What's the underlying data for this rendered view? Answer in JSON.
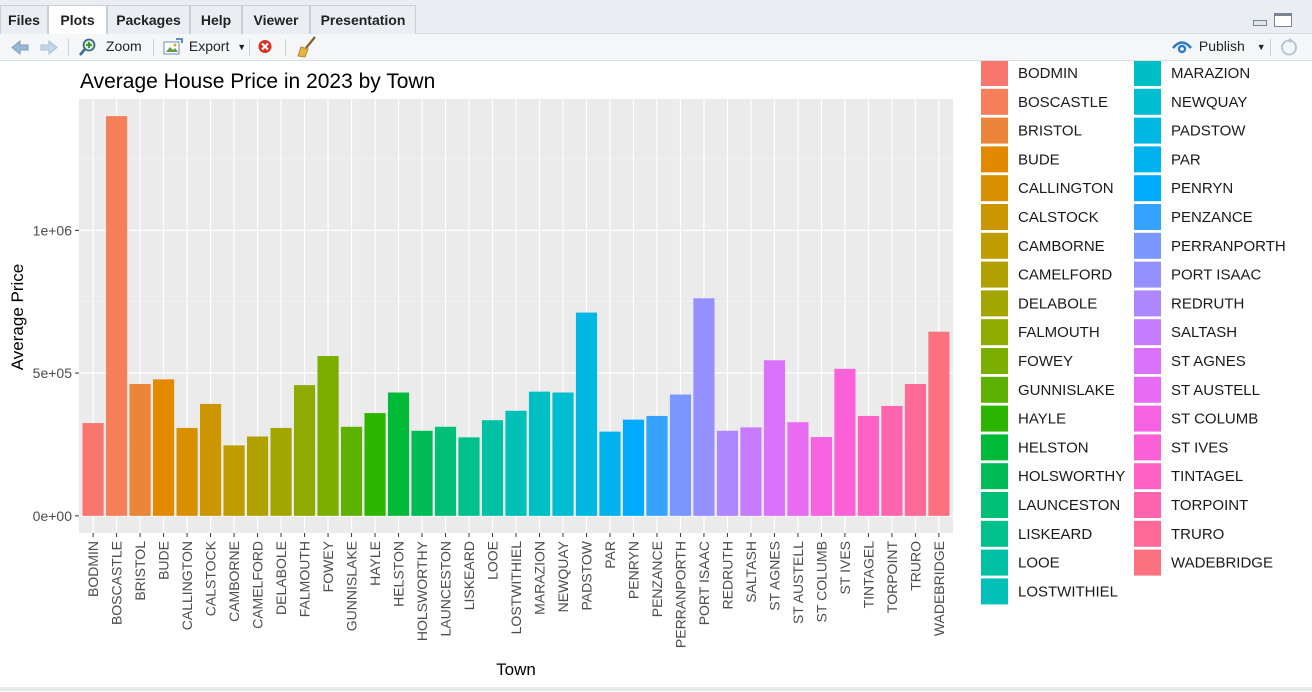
{
  "tabs": [
    {
      "label": "Files",
      "active": false
    },
    {
      "label": "Plots",
      "active": true
    },
    {
      "label": "Packages",
      "active": false
    },
    {
      "label": "Help",
      "active": false
    },
    {
      "label": "Viewer",
      "active": false
    },
    {
      "label": "Presentation",
      "active": false
    }
  ],
  "toolbar": {
    "back_icon": "arrow-left-icon",
    "forward_icon": "arrow-right-icon",
    "zoom_label": "Zoom",
    "export_label": "Export",
    "remove_icon": "remove-plot-icon",
    "clear_icon": "broom-icon",
    "publish_label": "Publish",
    "refresh_icon": "refresh-icon"
  },
  "chart_data": {
    "type": "bar",
    "title": "Average House Price in 2023 by Town",
    "xlabel": "Town",
    "ylabel": "Average Price",
    "ylim": [
      -60000,
      1460000
    ],
    "yticks": [
      0,
      500000,
      1000000
    ],
    "ytick_labels": [
      "0e+00",
      "5e+05",
      "1e+06"
    ],
    "grid": true,
    "legend_position": "right",
    "categories": [
      "BODMIN",
      "BOSCASTLE",
      "BRISTOL",
      "BUDE",
      "CALLINGTON",
      "CALSTOCK",
      "CAMBORNE",
      "CAMELFORD",
      "DELABOLE",
      "FALMOUTH",
      "FOWEY",
      "GUNNISLAKE",
      "HAYLE",
      "HELSTON",
      "HOLSWORTHY",
      "LAUNCESTON",
      "LISKEARD",
      "LOOE",
      "LOSTWITHIEL",
      "MARAZION",
      "NEWQUAY",
      "PADSTOW",
      "PAR",
      "PENRYN",
      "PENZANCE",
      "PERRANPORTH",
      "PORT ISAAC",
      "REDRUTH",
      "SALTASH",
      "ST AGNES",
      "ST AUSTELL",
      "ST COLUMB",
      "ST IVES",
      "TINTAGEL",
      "TORPOINT",
      "TRURO",
      "WADEBRIDGE"
    ],
    "values": [
      325000,
      1400000,
      462000,
      478000,
      308000,
      392000,
      247000,
      278000,
      308000,
      458000,
      560000,
      312000,
      360000,
      432000,
      298000,
      312000,
      275000,
      335000,
      368000,
      435000,
      432000,
      712000,
      295000,
      337000,
      350000,
      425000,
      762000,
      298000,
      310000,
      545000,
      328000,
      276000,
      515000,
      350000,
      385000,
      462000,
      645000
    ],
    "colors": [
      "#F8766D",
      "#F47F59",
      "#EC8539",
      "#E38900",
      "#D89000",
      "#CC9600",
      "#BF9C00",
      "#B0A100",
      "#A3A600",
      "#8FAA00",
      "#7AAE00",
      "#5DB100",
      "#2DB600",
      "#00BA38",
      "#00BC56",
      "#00BF76",
      "#00C08B",
      "#00C1A3",
      "#00C0B8",
      "#00BFC4",
      "#00BDD2",
      "#00B8E3",
      "#00B2EE",
      "#00ABFD",
      "#35A2FF",
      "#7997FF",
      "#9590FF",
      "#AE87FF",
      "#C77CFF",
      "#DA72FB",
      "#E76BF3",
      "#F563E3",
      "#FB61D7",
      "#FF62C4",
      "#FF65AE",
      "#FF6A98",
      "#FC717F"
    ]
  }
}
